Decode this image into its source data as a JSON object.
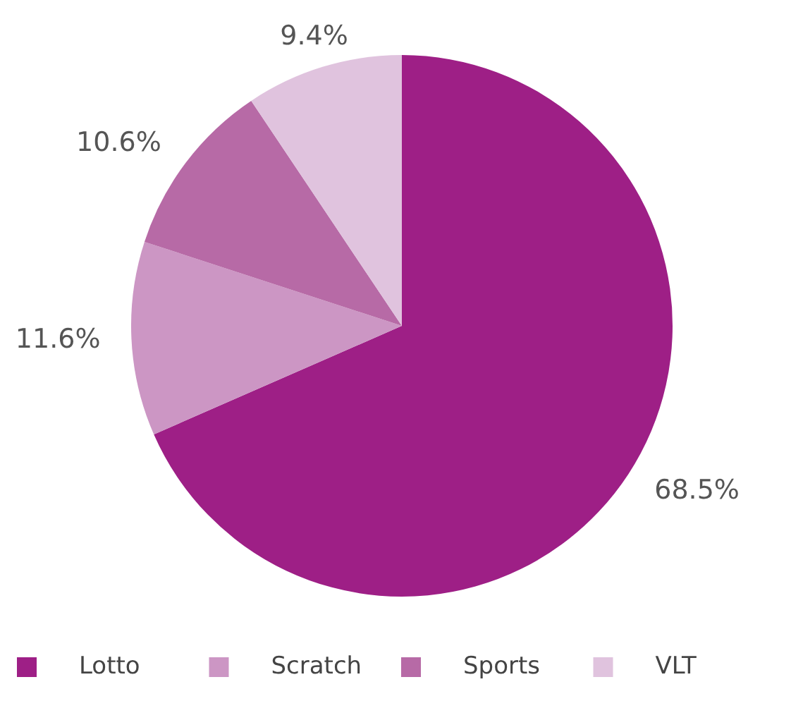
{
  "chart_data": {
    "type": "pie",
    "categories": [
      "Lotto",
      "Scratch",
      "Sports",
      "VLT"
    ],
    "values": [
      68.5,
      11.6,
      10.6,
      9.4
    ],
    "colors": [
      "#9e1f86",
      "#cc96c4",
      "#b76aa6",
      "#e0c3de"
    ],
    "value_labels": [
      "68.5%",
      "11.6%",
      "10.6%",
      "9.4%"
    ],
    "legend": "bottom"
  }
}
